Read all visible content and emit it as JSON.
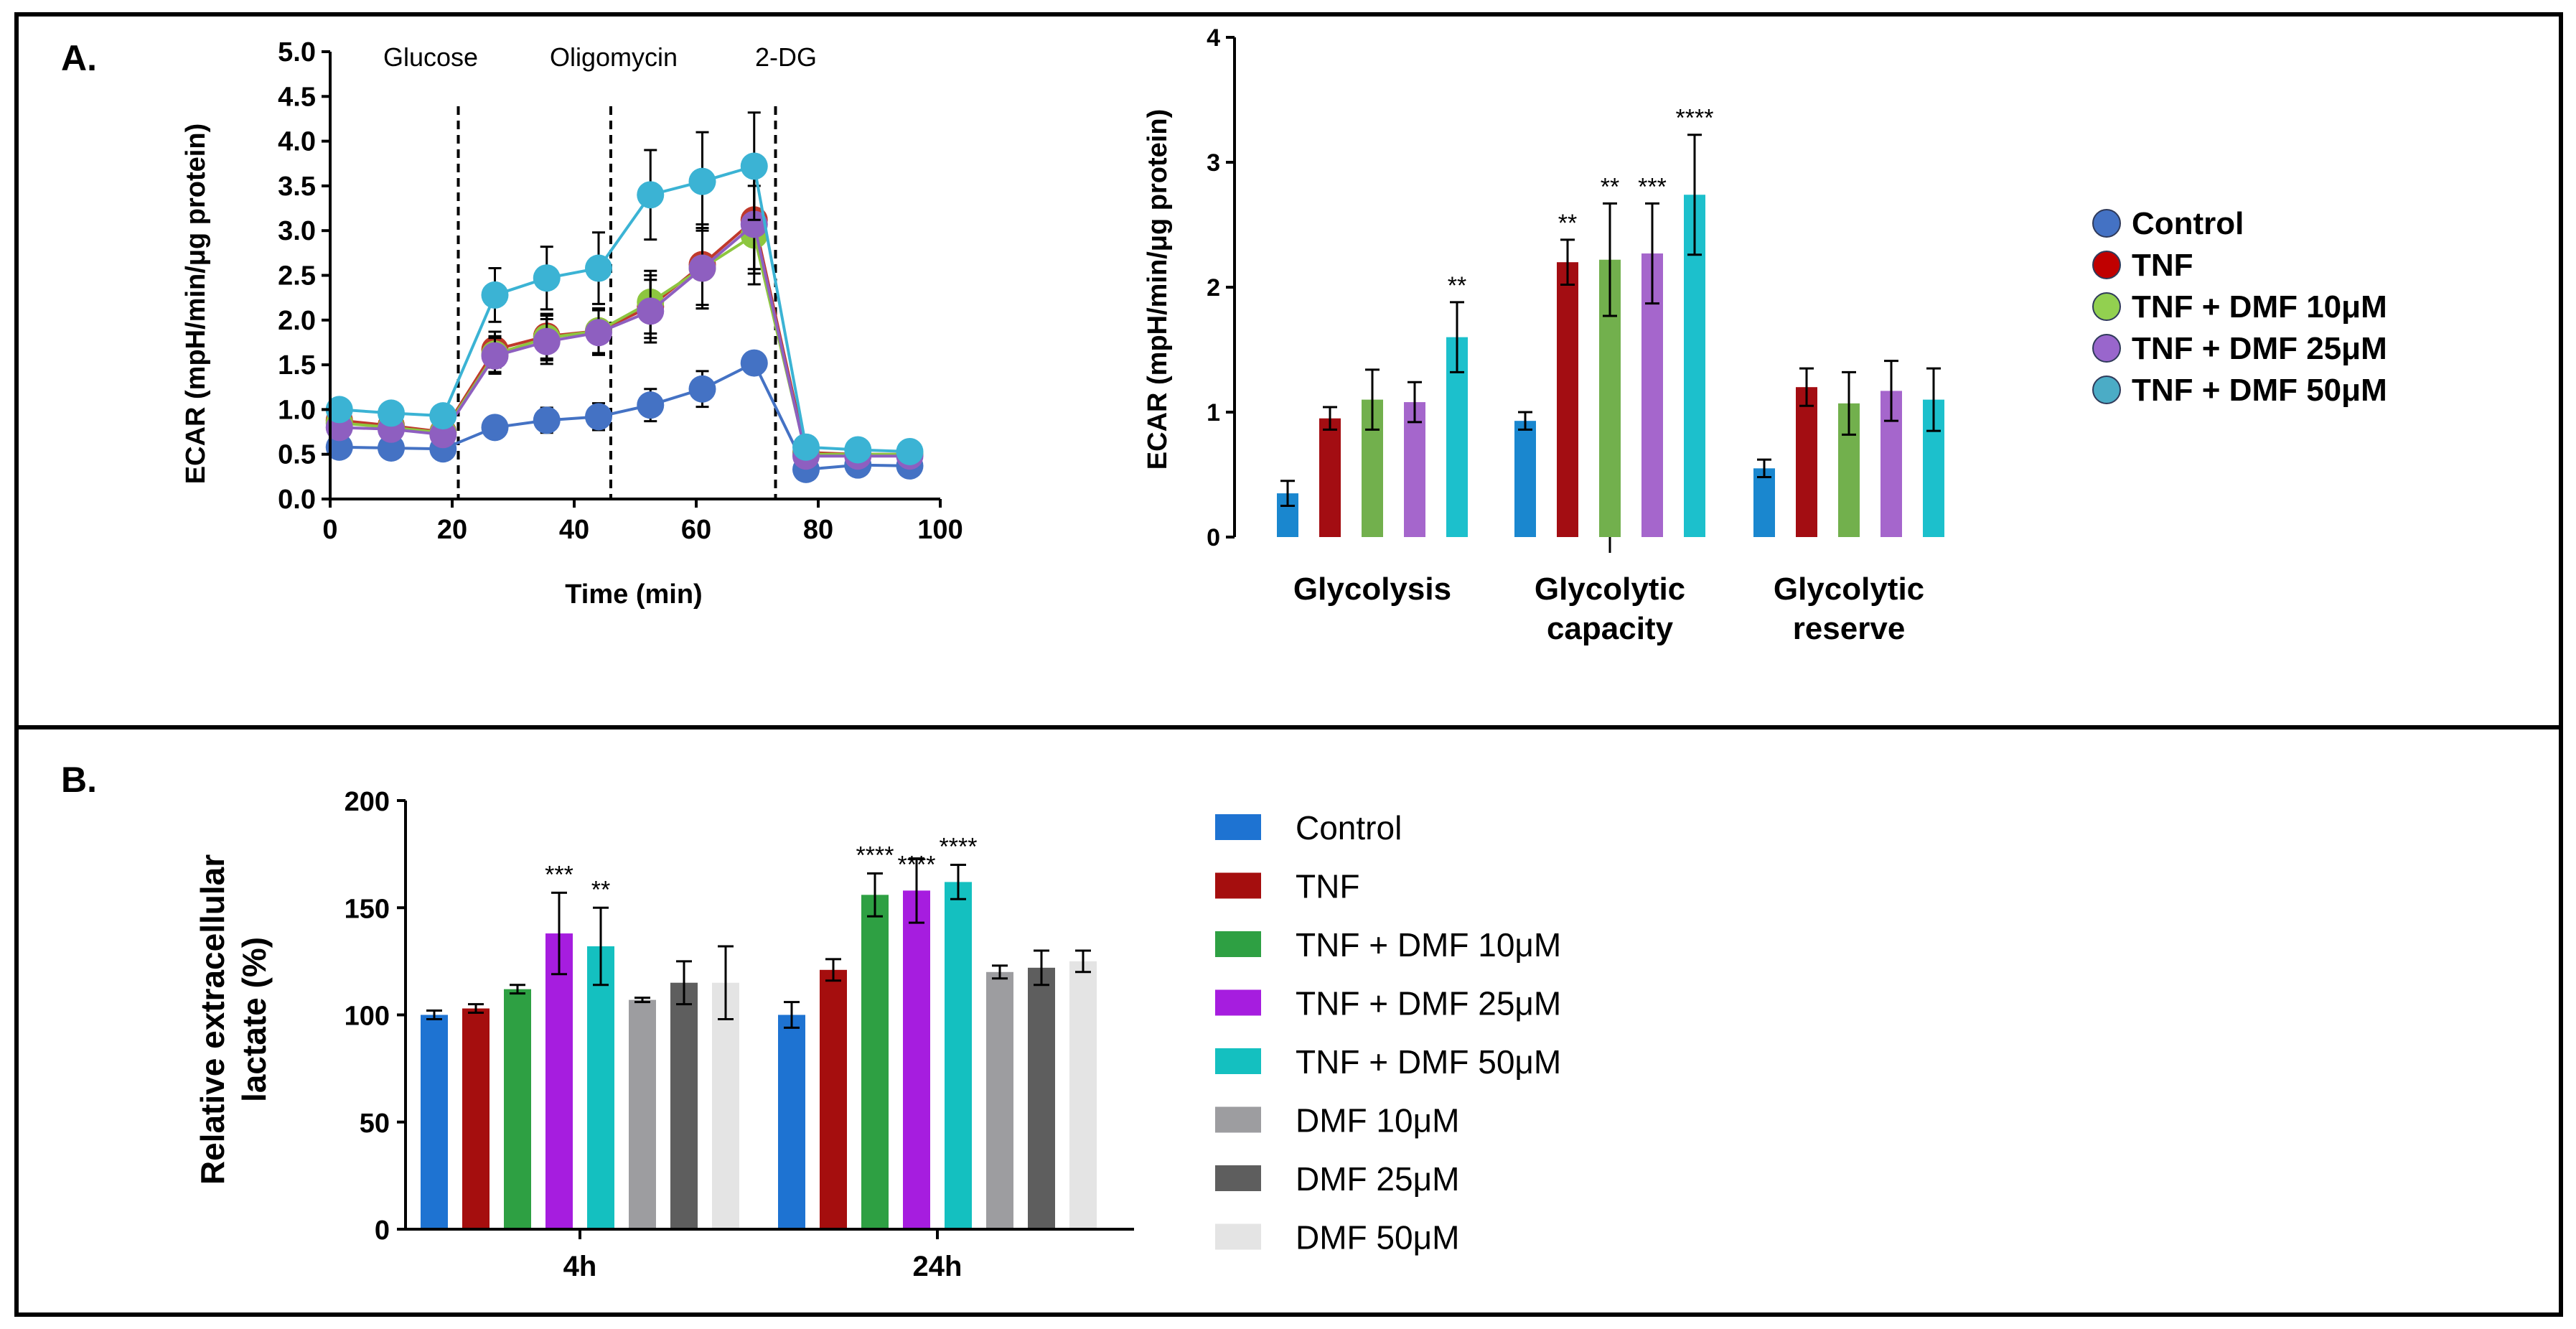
{
  "panels": {
    "a_label": "A.",
    "b_label": "B."
  },
  "chart_data": [
    {
      "type": "line",
      "title": "",
      "xlabel": "Time (min)",
      "ylabel": "ECAR (mpH/min/μg protein)",
      "xlim": [
        0,
        100
      ],
      "ylim": [
        0,
        5.0
      ],
      "xticks": [
        "0",
        "20",
        "40",
        "60",
        "80",
        "100"
      ],
      "yticks": [
        "0.0",
        "0.5",
        "1.0",
        "1.5",
        "2.0",
        "2.5",
        "3.0",
        "3.5",
        "4.0",
        "4.5",
        "5.0"
      ],
      "events": [
        {
          "label": "Glucose",
          "time": 21
        },
        {
          "label": "Oligomycin",
          "time": 46
        },
        {
          "label": "2-DG",
          "time": 73
        }
      ],
      "x": [
        1.5,
        10,
        18.5,
        27,
        35.5,
        44,
        52.5,
        61,
        69.5,
        78,
        86.5,
        95
      ],
      "series": [
        {
          "name": "Control",
          "color": "#4472c4",
          "values": [
            0.58,
            0.57,
            0.56,
            0.8,
            0.88,
            0.92,
            1.05,
            1.23,
            1.52,
            0.33,
            0.38,
            0.37
          ],
          "errors": [
            0.08,
            0.08,
            0.08,
            0.12,
            0.14,
            0.15,
            0.18,
            0.2,
            0.12,
            0.05,
            0.05,
            0.05
          ]
        },
        {
          "name": "TNF",
          "color": "#c0392b",
          "values": [
            0.88,
            0.82,
            0.75,
            1.67,
            1.82,
            1.88,
            2.15,
            2.62,
            3.12,
            0.52,
            0.5,
            0.5
          ],
          "errors": [
            0.1,
            0.1,
            0.1,
            0.2,
            0.25,
            0.25,
            0.35,
            0.45,
            0.55,
            0.1,
            0.1,
            0.1
          ]
        },
        {
          "name": "TNF + DMF 10μM",
          "color": "#8dc63f",
          "values": [
            0.85,
            0.8,
            0.74,
            1.62,
            1.8,
            1.88,
            2.2,
            2.58,
            2.95,
            0.5,
            0.5,
            0.5
          ],
          "errors": [
            0.1,
            0.1,
            0.1,
            0.2,
            0.25,
            0.25,
            0.35,
            0.45,
            0.55,
            0.1,
            0.1,
            0.1
          ]
        },
        {
          "name": "TNF + DMF 25μM",
          "color": "#8e5fc0",
          "values": [
            0.8,
            0.78,
            0.72,
            1.6,
            1.76,
            1.86,
            2.1,
            2.58,
            3.07,
            0.48,
            0.48,
            0.48
          ],
          "errors": [
            0.1,
            0.1,
            0.1,
            0.2,
            0.25,
            0.25,
            0.35,
            0.45,
            0.55,
            0.1,
            0.1,
            0.1
          ]
        },
        {
          "name": "TNF + DMF 50μM",
          "color": "#3bb3d4",
          "values": [
            1.0,
            0.96,
            0.93,
            2.28,
            2.47,
            2.58,
            3.4,
            3.55,
            3.72,
            0.58,
            0.55,
            0.53
          ],
          "errors": [
            0.1,
            0.1,
            0.1,
            0.3,
            0.35,
            0.4,
            0.5,
            0.55,
            0.6,
            0.1,
            0.1,
            0.1
          ]
        }
      ]
    },
    {
      "type": "bar",
      "title": "",
      "xlabel": "",
      "ylabel": "ECAR (mpH/min/μg protein)",
      "ylim": [
        0,
        4
      ],
      "yticks": [
        "0",
        "1",
        "2",
        "3",
        "4"
      ],
      "categories": [
        "Glycolysis",
        "Glycolytic capacity",
        "Glycolytic reserve"
      ],
      "category_lines": [
        [
          "Glycolysis"
        ],
        [
          "Glycolytic",
          "capacity"
        ],
        [
          "Glycolytic",
          "reserve"
        ]
      ],
      "series": [
        {
          "name": "Control",
          "color": "#1a87cf",
          "legend_color": "#4472c4",
          "values": [
            0.35,
            0.93,
            0.55
          ],
          "errors": [
            0.1,
            0.07,
            0.07
          ],
          "sig": [
            "",
            "",
            ""
          ]
        },
        {
          "name": "TNF",
          "color": "#a30d12",
          "legend_color": "#c00000",
          "values": [
            0.95,
            2.2,
            1.2
          ],
          "errors": [
            0.09,
            0.18,
            0.15
          ],
          "sig": [
            "",
            "**",
            ""
          ]
        },
        {
          "name": "TNF + DMF 10μM",
          "color": "#72b04d",
          "legend_color": "#92d050",
          "values": [
            1.1,
            2.22,
            1.07
          ],
          "errors": [
            0.24,
            0.45,
            0.25
          ],
          "sig": [
            "",
            "**",
            ""
          ]
        },
        {
          "name": "TNF + DMF 25μM",
          "color": "#a566cc",
          "legend_color": "#9966cc",
          "values": [
            1.08,
            2.27,
            1.17
          ],
          "errors": [
            0.16,
            0.4,
            0.24
          ],
          "sig": [
            "",
            "***",
            ""
          ]
        },
        {
          "name": "TNF + DMF 50μM",
          "color": "#1cc0cc",
          "legend_color": "#4bacc6",
          "values": [
            1.6,
            2.74,
            1.1
          ],
          "errors": [
            0.28,
            0.48,
            0.25
          ],
          "sig": [
            "**",
            "****",
            ""
          ]
        }
      ]
    },
    {
      "type": "bar",
      "title": "",
      "xlabel": "",
      "ylabel": "Relative extracellular lactate (%)",
      "ylabel_lines": [
        "Relative extracellular",
        "lactate (%)"
      ],
      "ylim": [
        0,
        200
      ],
      "yticks": [
        "0",
        "50",
        "100",
        "150",
        "200"
      ],
      "categories": [
        "4h",
        "24h"
      ],
      "series": [
        {
          "name": "Control",
          "color": "#1e73d2",
          "values": [
            100,
            100
          ],
          "errors": [
            2,
            6
          ],
          "sig": [
            "",
            ""
          ]
        },
        {
          "name": "TNF",
          "color": "#a50e0e",
          "values": [
            103,
            121
          ],
          "errors": [
            2,
            5
          ],
          "sig": [
            "",
            ""
          ]
        },
        {
          "name": "TNF + DMF 10μM",
          "color": "#2ea043",
          "values": [
            112,
            156
          ],
          "errors": [
            2,
            10
          ],
          "sig": [
            "",
            "****"
          ]
        },
        {
          "name": "TNF + DMF 25μM",
          "color": "#a61ddf",
          "values": [
            138,
            158
          ],
          "errors": [
            19,
            15
          ],
          "sig": [
            "***",
            "****"
          ]
        },
        {
          "name": "TNF + DMF 50μM",
          "color": "#14c0c0",
          "values": [
            132,
            162
          ],
          "errors": [
            18,
            8
          ],
          "sig": [
            "**",
            "****"
          ]
        },
        {
          "name": "DMF 10μM",
          "color": "#9d9da0",
          "values": [
            107,
            120
          ],
          "errors": [
            1,
            3
          ],
          "sig": [
            "",
            ""
          ]
        },
        {
          "name": "DMF 25μM",
          "color": "#5e5e5e",
          "values": [
            115,
            122
          ],
          "errors": [
            10,
            8
          ],
          "sig": [
            "",
            ""
          ]
        },
        {
          "name": "DMF 50μM",
          "color": "#e4e4e4",
          "values": [
            115,
            125
          ],
          "errors": [
            17,
            5
          ],
          "sig": [
            "",
            ""
          ]
        }
      ]
    }
  ]
}
